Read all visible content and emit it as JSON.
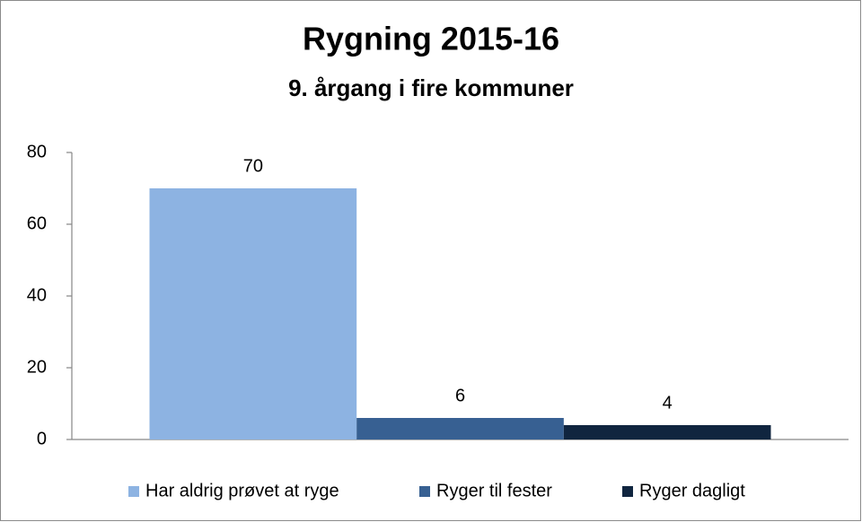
{
  "chart_data": {
    "type": "bar",
    "title": "Rygning 2015-16",
    "subtitle": "9. årgang i fire kommuner",
    "categories": [
      null
    ],
    "series": [
      {
        "name": "Har aldrig prøvet at ryge",
        "color": "#8db3e2",
        "values": [
          70
        ]
      },
      {
        "name": "Ryger til fester",
        "color": "#376092",
        "values": [
          6
        ]
      },
      {
        "name": "Ryger dagligt",
        "color": "#10253f",
        "values": [
          4
        ]
      }
    ],
    "ylim": [
      0,
      80
    ],
    "yticks": [
      0,
      20,
      40,
      60,
      80
    ],
    "grid": false,
    "legend": "bottom"
  }
}
